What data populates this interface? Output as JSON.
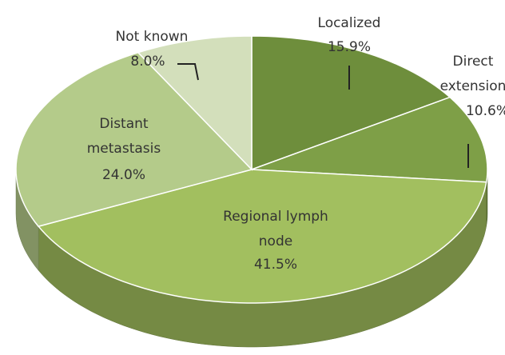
{
  "chart_data": {
    "type": "pie",
    "categories": [
      "Localized",
      "Direct extension",
      "Regional lymph node",
      "Distant metastasis",
      "Not known"
    ],
    "values": [
      15.9,
      10.6,
      41.5,
      24.0,
      8.0
    ],
    "value_labels": [
      "15.9%",
      "10.6%",
      "41.5%",
      "24.0%",
      "8.0%"
    ],
    "colors": [
      "#6e8e3c",
      "#7e9f47",
      "#a2bf5f",
      "#b4cb8a",
      "#d3dfbb"
    ]
  }
}
